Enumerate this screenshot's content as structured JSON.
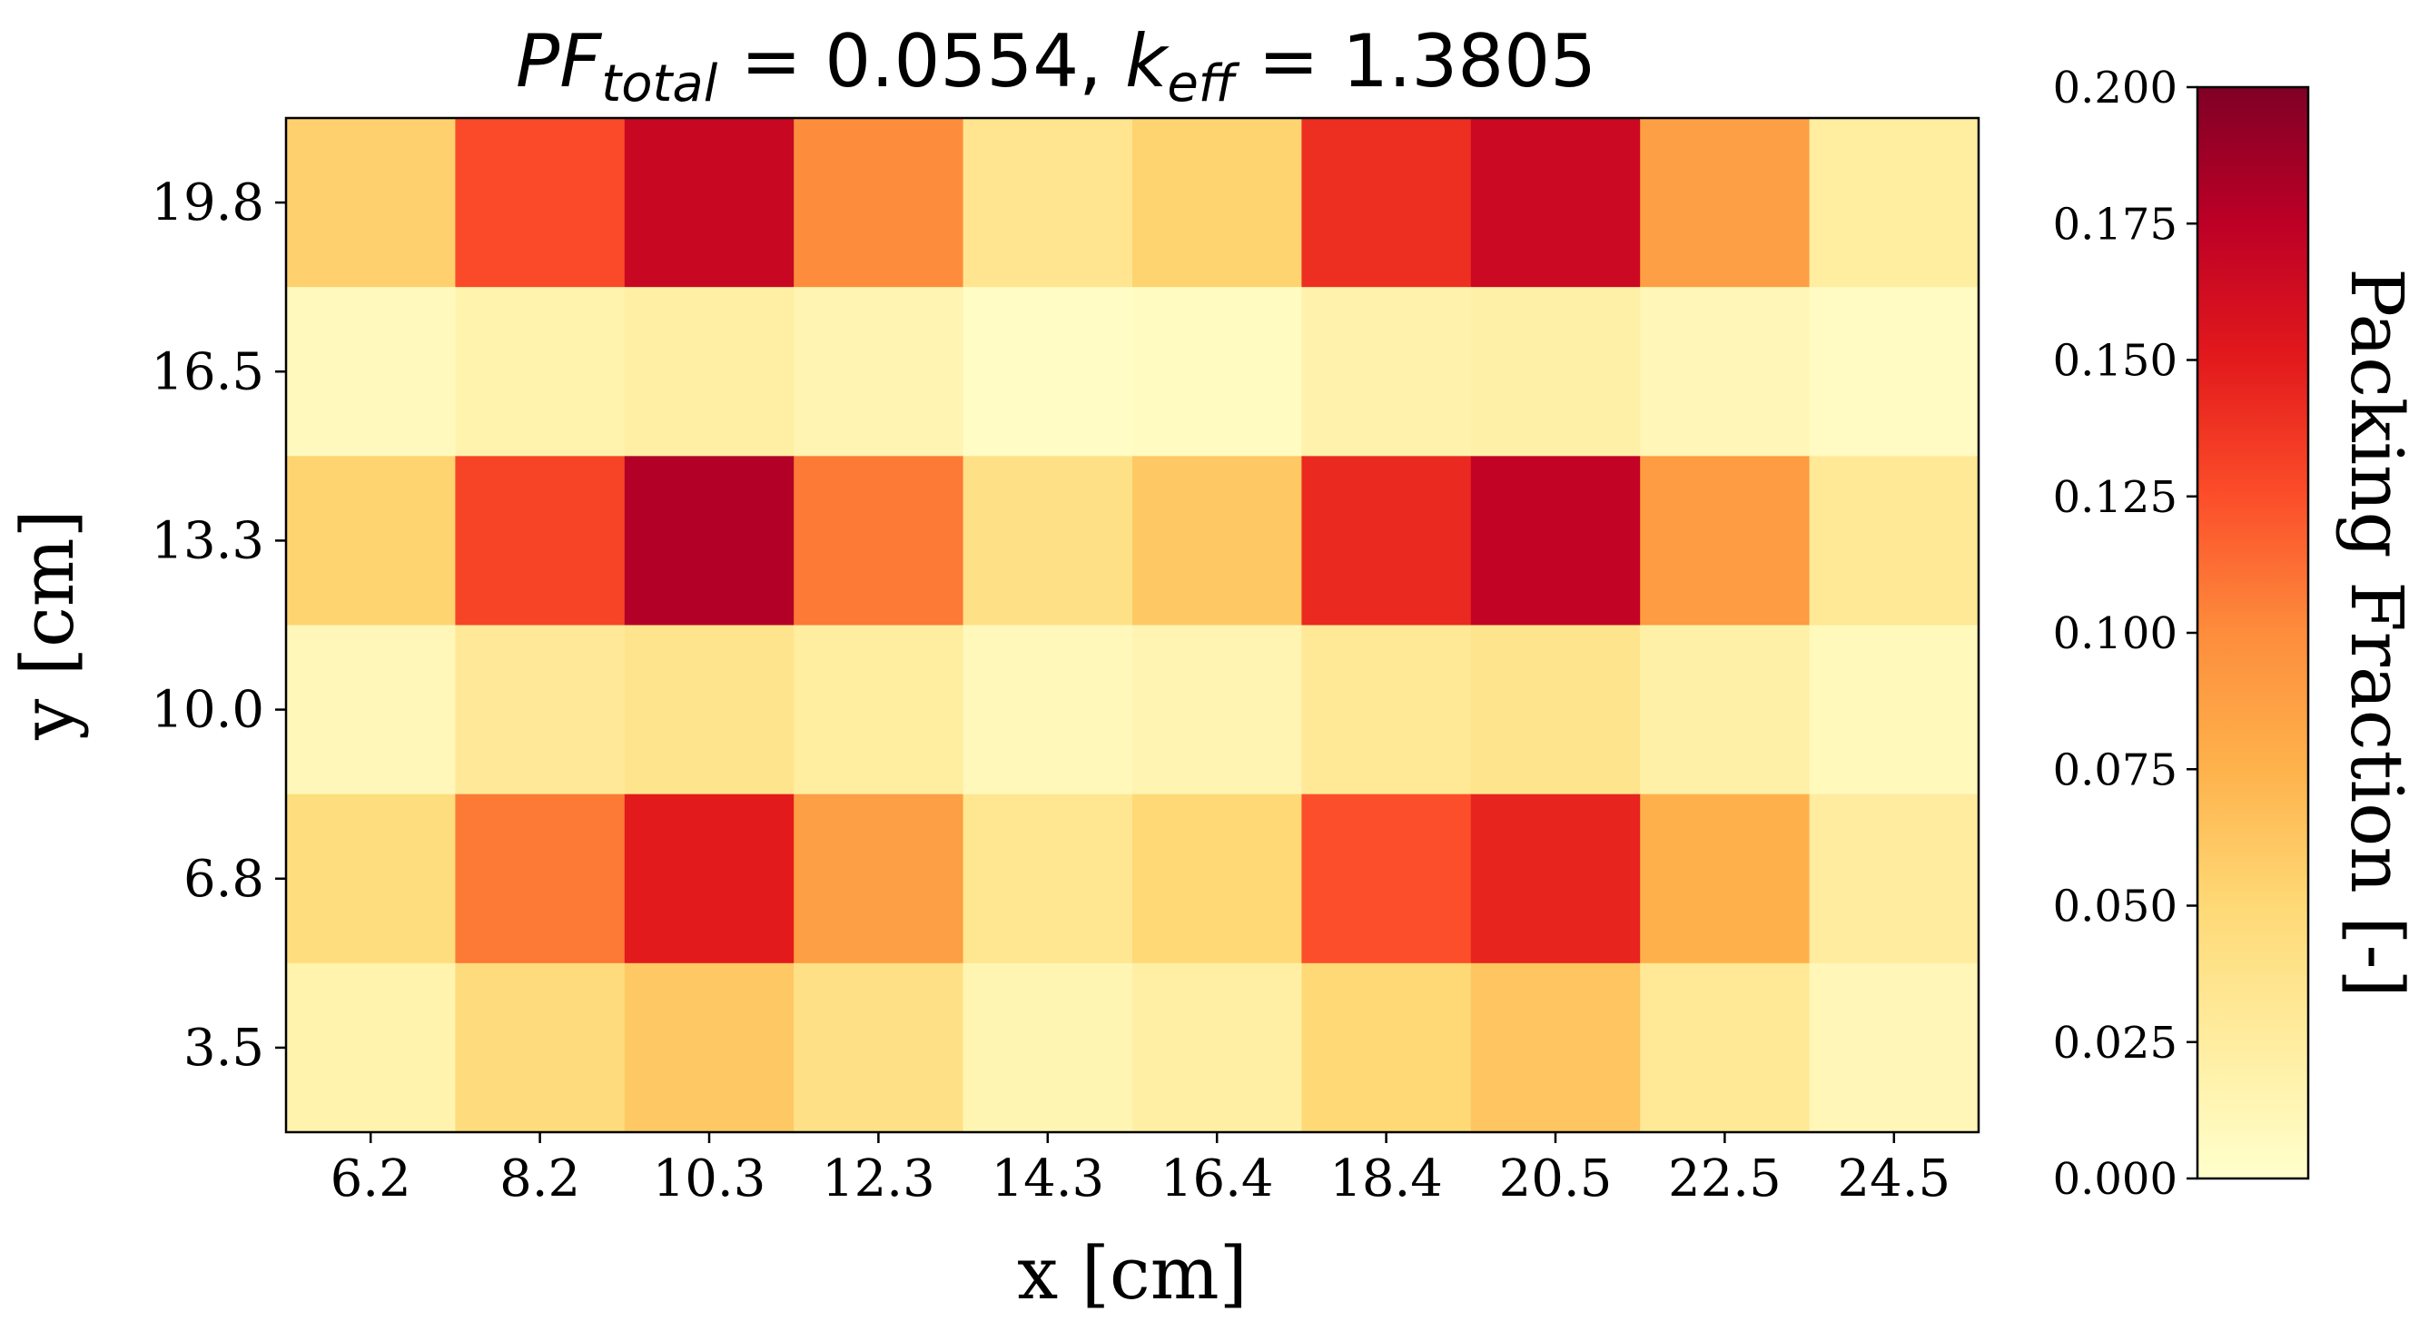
{
  "chart_data": {
    "type": "heatmap",
    "title": {
      "pf_symbol": "PF",
      "pf_subscript": "total",
      "pf_value": " = 0.0554, ",
      "k_symbol": "k",
      "k_subscript": "eff",
      "k_value": " = 1.3805"
    },
    "xlabel": "x [cm]",
    "ylabel": "y [cm]",
    "x_ticks": [
      "6.2",
      "8.2",
      "10.3",
      "12.3",
      "14.3",
      "16.4",
      "18.4",
      "20.5",
      "22.5",
      "24.5"
    ],
    "y_ticks": [
      "19.8",
      "16.5",
      "13.3",
      "10.0",
      "6.8",
      "3.5"
    ],
    "grid": false,
    "values": [
      [
        0.055,
        0.127,
        0.168,
        0.1,
        0.035,
        0.053,
        0.14,
        0.166,
        0.088,
        0.025
      ],
      [
        0.008,
        0.017,
        0.022,
        0.015,
        0.004,
        0.006,
        0.018,
        0.021,
        0.012,
        0.005
      ],
      [
        0.053,
        0.13,
        0.179,
        0.108,
        0.04,
        0.061,
        0.143,
        0.172,
        0.09,
        0.031
      ],
      [
        0.011,
        0.03,
        0.036,
        0.025,
        0.01,
        0.015,
        0.031,
        0.036,
        0.021,
        0.009
      ],
      [
        0.045,
        0.108,
        0.15,
        0.088,
        0.034,
        0.05,
        0.125,
        0.145,
        0.076,
        0.026
      ],
      [
        0.017,
        0.046,
        0.06,
        0.04,
        0.014,
        0.022,
        0.05,
        0.063,
        0.031,
        0.012
      ]
    ],
    "colorbar": {
      "label": "Packing Fraction [-]",
      "range": [
        0.0,
        0.2
      ],
      "ticks": [
        "0.000",
        "0.025",
        "0.050",
        "0.075",
        "0.100",
        "0.125",
        "0.150",
        "0.175",
        "0.200"
      ],
      "colormap": "YlOrRd",
      "stops": [
        "#ffffcc",
        "#ffeda0",
        "#fed976",
        "#feb24c",
        "#fd8d3c",
        "#fc4e2a",
        "#e31a1c",
        "#bd0026",
        "#800026"
      ]
    }
  }
}
